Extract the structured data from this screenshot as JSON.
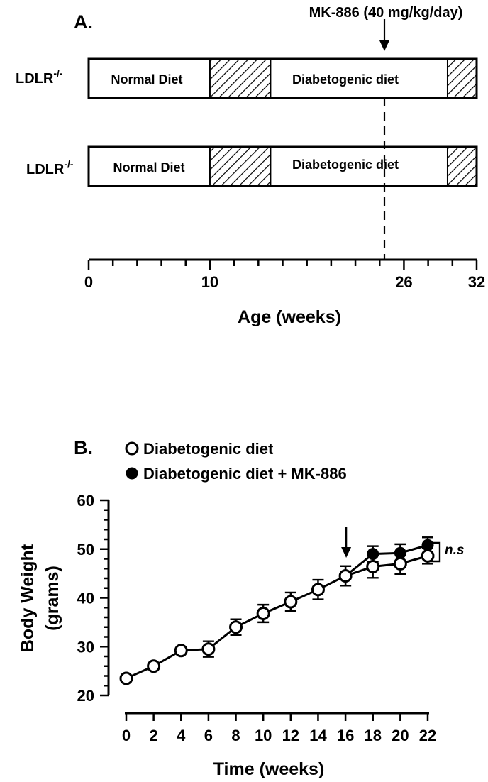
{
  "panel_a": {
    "label": "A.",
    "annotation": "MK-886 (40 mg/kg/day)",
    "rows": [
      {
        "group": "LDLR",
        "superscript": "-/-",
        "normal_label": "Normal Diet",
        "diet_label": "Diabetogenic diet"
      },
      {
        "group": "LDLR",
        "superscript": "-/-",
        "normal_label": "Normal Diet",
        "diet_label": "Diabetogenic diet"
      }
    ]
  },
  "panel_b": {
    "label": "B.",
    "significance": "n.s"
  },
  "chart_data": [
    {
      "type": "timeline",
      "xlabel": "Age (weeks)",
      "tick_labels": [
        "0",
        "10",
        "26",
        "32"
      ],
      "xlim": [
        0,
        32
      ],
      "segments": [
        {
          "label": "Normal Diet",
          "start": 0,
          "end": 10,
          "fill": "white"
        },
        {
          "label": "",
          "start": 10,
          "end": 15,
          "fill": "hatched"
        },
        {
          "label": "Diabetogenic diet",
          "start": 15,
          "end": 29.6,
          "fill": "white"
        },
        {
          "label": "",
          "start": 29.6,
          "end": 32,
          "fill": "hatched"
        }
      ],
      "marker_week": 26
    },
    {
      "type": "line",
      "xlabel": "Time (weeks)",
      "ylabel_line1": "Body Weight",
      "ylabel_line2": "(grams)",
      "xlim": [
        0,
        22
      ],
      "ylim": [
        20,
        60
      ],
      "x_ticks": [
        "0",
        "2",
        "4",
        "6",
        "8",
        "10",
        "12",
        "14",
        "16",
        "18",
        "20",
        "22"
      ],
      "y_ticks": [
        "20",
        "30",
        "40",
        "50",
        "60"
      ],
      "arrow_at_week": 16,
      "series": [
        {
          "name": "Diabetogenic diet",
          "marker": "open",
          "x": [
            0,
            2,
            4,
            6,
            8,
            10,
            12,
            14,
            16,
            18,
            20,
            22
          ],
          "y": [
            23.5,
            26.0,
            29.2,
            29.5,
            34.0,
            36.8,
            39.2,
            41.7,
            44.5,
            46.4,
            47.0,
            48.6
          ],
          "err": [
            0.4,
            0.4,
            0.5,
            1.6,
            1.6,
            1.8,
            1.9,
            2.0,
            2.0,
            2.3,
            2.1,
            1.6
          ]
        },
        {
          "name": "Diabetogenic diet + MK-886",
          "marker": "filled",
          "x": [
            16,
            18,
            20,
            22
          ],
          "y": [
            44.5,
            49.0,
            49.2,
            50.8
          ],
          "err": [
            2.0,
            1.6,
            1.8,
            1.6
          ]
        }
      ]
    }
  ]
}
